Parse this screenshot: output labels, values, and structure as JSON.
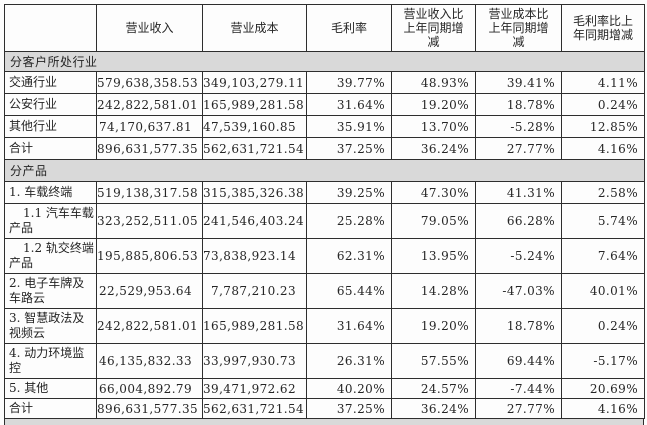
{
  "table": {
    "header": {
      "corner": "",
      "columns": [
        "营业收入",
        "营业成本",
        "毛利率",
        "营业收入比上年同期增减",
        "营业成本比上年同期增减",
        "毛利率比上年同期增减"
      ]
    },
    "sections": [
      {
        "title": "分客户所处行业",
        "rows": [
          {
            "label": "交通行业",
            "values": [
              "579,638,358.53",
              "349,103,279.11",
              "39.77%",
              "48.93%",
              "39.41%",
              "4.11%"
            ]
          },
          {
            "label": "公安行业",
            "values": [
              "242,822,581.01",
              "165,989,281.58",
              "31.64%",
              "19.20%",
              "18.78%",
              "0.24%"
            ]
          },
          {
            "label": "其他行业",
            "values": [
              "74,170,637.81",
              "47,539,160.85",
              "35.91%",
              "13.70%",
              "-5.28%",
              "12.85%"
            ]
          },
          {
            "label": "合计",
            "values": [
              "896,631,577.35",
              "562,631,721.54",
              "37.25%",
              "36.24%",
              "27.77%",
              "4.16%"
            ]
          }
        ]
      },
      {
        "title": "分产品",
        "rows": [
          {
            "label": "1. 车载终端",
            "values": [
              "519,138,317.58",
              "315,385,326.38",
              "39.25%",
              "47.30%",
              "41.31%",
              "2.58%"
            ]
          },
          {
            "label": "1.1 汽车车载产品",
            "values": [
              "323,252,511.05",
              "241,546,403.24",
              "25.28%",
              "79.05%",
              "66.28%",
              "5.74%"
            ]
          },
          {
            "label": "1.2 轨交终端产品",
            "values": [
              "195,885,806.53",
              "73,838,923.14",
              "62.31%",
              "13.95%",
              "-5.24%",
              "7.64%"
            ]
          },
          {
            "label": "2. 电子车牌及车路云",
            "values": [
              "22,529,953.64",
              "7,787,210.23",
              "65.44%",
              "14.28%",
              "-47.03%",
              "40.01%"
            ]
          },
          {
            "label": "3. 智慧政法及视频云",
            "values": [
              "242,822,581.01",
              "165,989,281.58",
              "31.64%",
              "19.20%",
              "18.78%",
              "0.24%"
            ]
          },
          {
            "label": "4. 动力环境监控",
            "values": [
              "46,135,832.33",
              "33,997,930.73",
              "26.31%",
              "57.55%",
              "69.44%",
              "-5.17%"
            ]
          },
          {
            "label": "5. 其他",
            "values": [
              "66,004,892.79",
              "39,471,972.62",
              "40.20%",
              "24.57%",
              "-7.44%",
              "20.69%"
            ]
          },
          {
            "label": "合计",
            "values": [
              "896,631,577.35",
              "562,631,721.54",
              "37.25%",
              "36.24%",
              "27.77%",
              "4.16%"
            ]
          }
        ]
      }
    ]
  }
}
